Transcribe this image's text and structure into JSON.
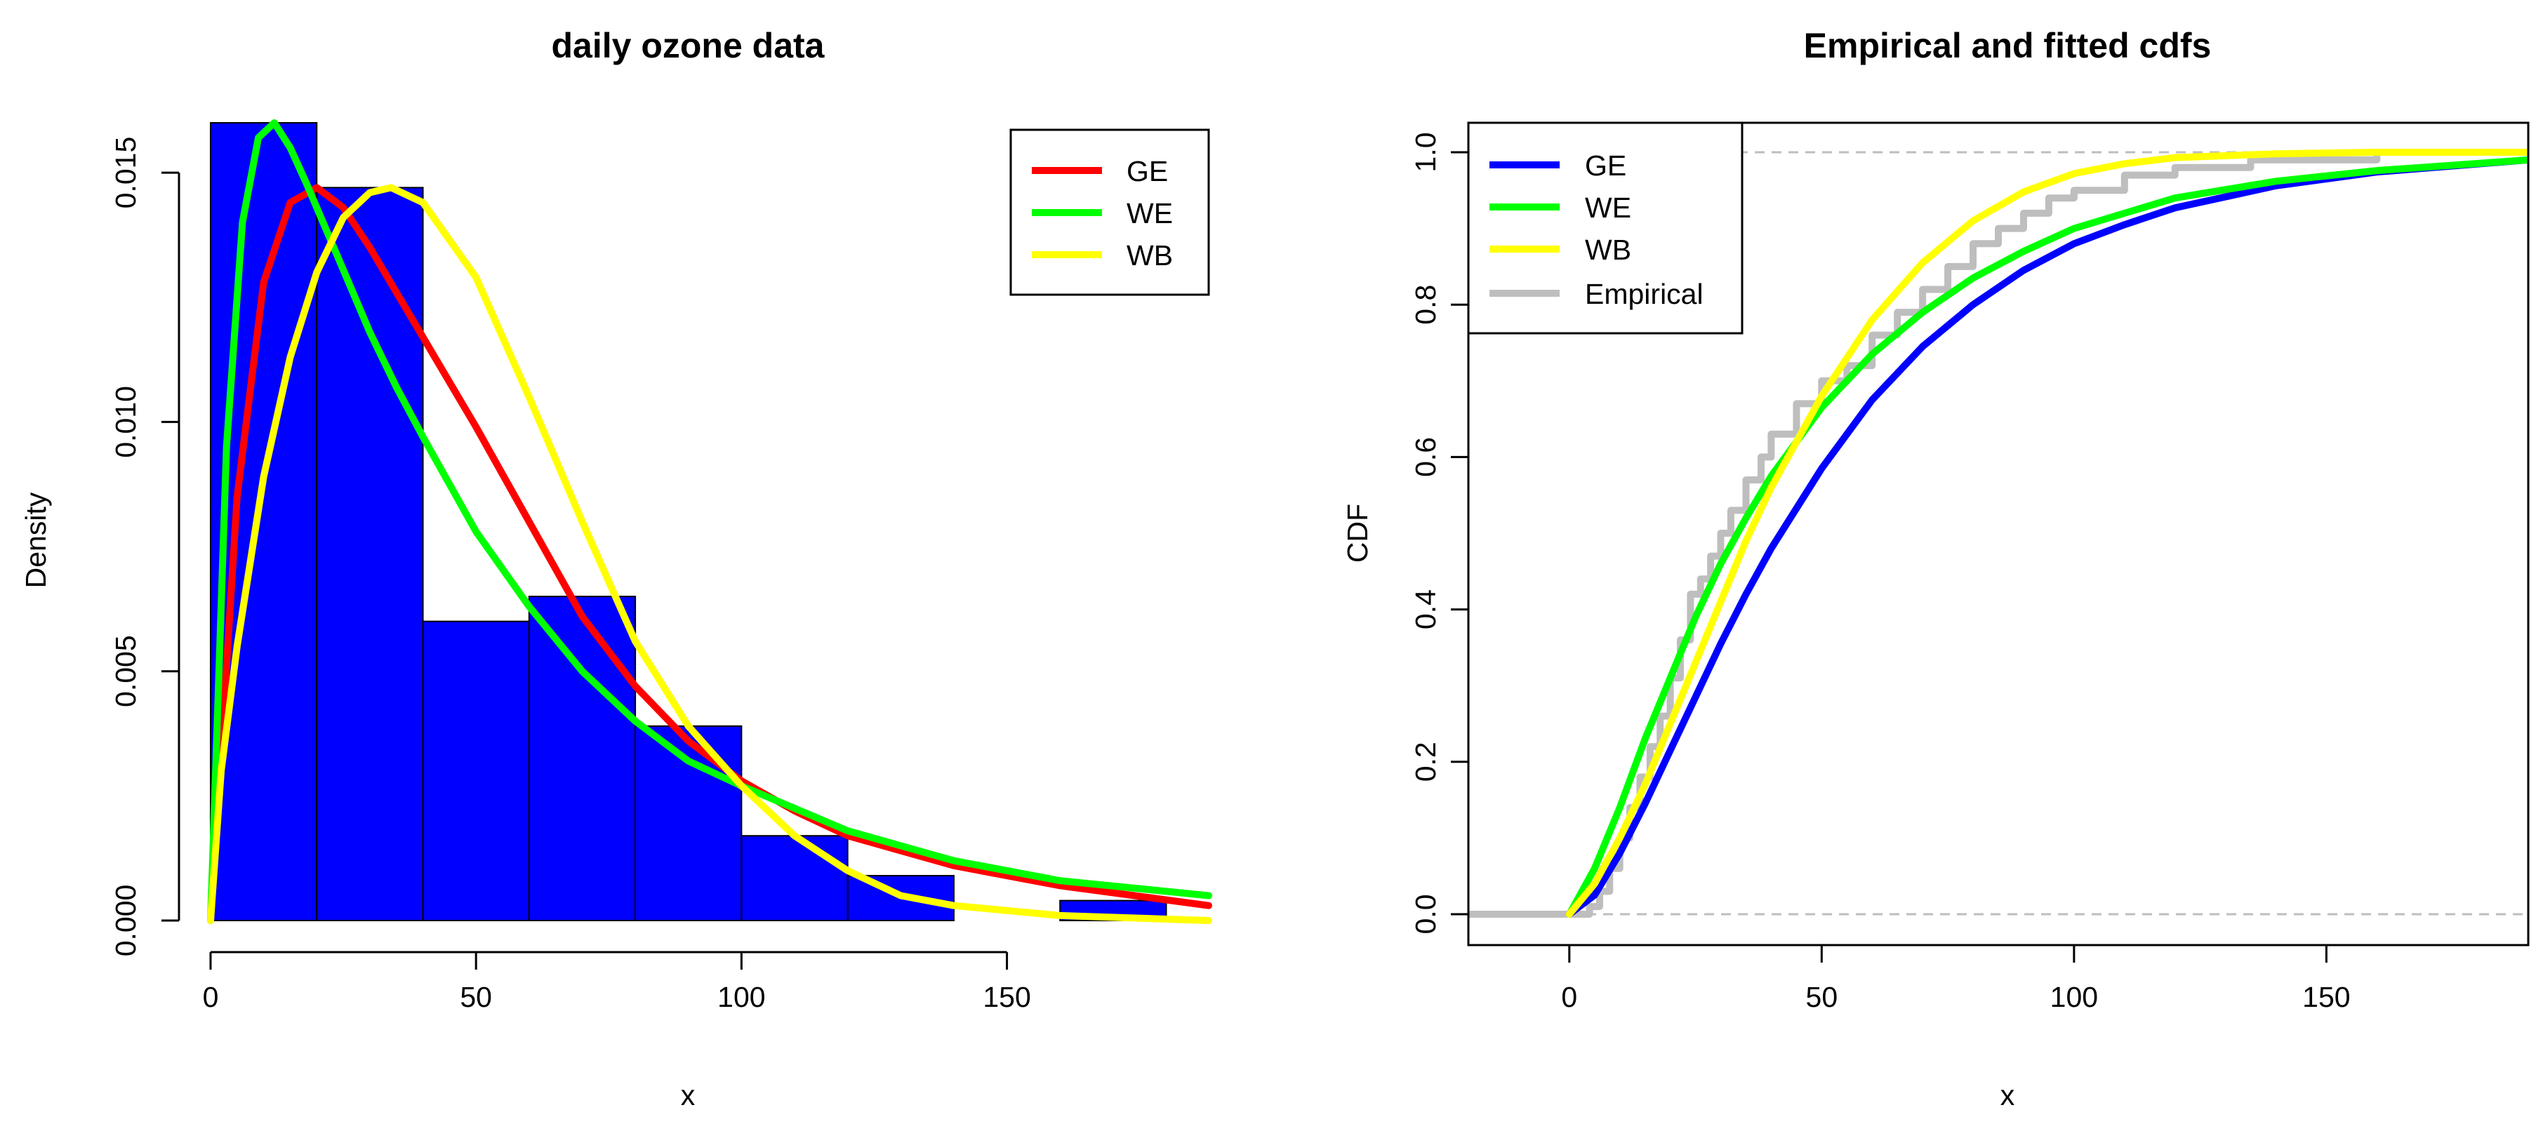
{
  "chart_data": [
    {
      "type": "histogram+line",
      "title": "daily ozone data",
      "xlabel": "x",
      "ylabel": "Density",
      "xlim": [
        0,
        188
      ],
      "ylim": [
        0,
        0.016
      ],
      "xticks": [
        0,
        50,
        100,
        150
      ],
      "yticks": [
        0.0,
        0.005,
        0.01,
        0.015
      ],
      "xtick_labels": [
        "0",
        "50",
        "100",
        "150"
      ],
      "ytick_labels": [
        "0.000",
        "0.005",
        "0.010",
        "0.015"
      ],
      "bar_color": "#0000ff",
      "bins": [
        {
          "x0": 0,
          "x1": 20,
          "density": 0.016
        },
        {
          "x0": 20,
          "x1": 40,
          "density": 0.0147
        },
        {
          "x0": 40,
          "x1": 60,
          "density": 0.006
        },
        {
          "x0": 60,
          "x1": 80,
          "density": 0.0065
        },
        {
          "x0": 80,
          "x1": 100,
          "density": 0.0039
        },
        {
          "x0": 100,
          "x1": 120,
          "density": 0.0017
        },
        {
          "x0": 120,
          "x1": 140,
          "density": 0.0009
        },
        {
          "x0": 140,
          "x1": 160,
          "density": 0.0
        },
        {
          "x0": 160,
          "x1": 180,
          "density": 0.0004
        }
      ],
      "series": [
        {
          "name": "GE",
          "color": "#ff0000",
          "x": [
            0,
            5,
            10,
            15,
            20,
            25,
            30,
            35,
            40,
            50,
            60,
            70,
            80,
            90,
            100,
            110,
            120,
            140,
            160,
            188
          ],
          "y": [
            0.0,
            0.0085,
            0.0128,
            0.0144,
            0.0147,
            0.0143,
            0.0135,
            0.0126,
            0.0117,
            0.0099,
            0.008,
            0.0061,
            0.0047,
            0.0036,
            0.0028,
            0.0022,
            0.0017,
            0.0011,
            0.0007,
            0.0003
          ]
        },
        {
          "name": "WE",
          "color": "#00ff00",
          "x": [
            0,
            3,
            6,
            9,
            12,
            15,
            18,
            22,
            26,
            30,
            35,
            40,
            50,
            60,
            70,
            80,
            90,
            100,
            120,
            140,
            160,
            188
          ],
          "y": [
            0.0,
            0.0095,
            0.014,
            0.0157,
            0.016,
            0.0155,
            0.0148,
            0.0138,
            0.0128,
            0.0118,
            0.0107,
            0.0097,
            0.0078,
            0.0063,
            0.005,
            0.004,
            0.0032,
            0.0027,
            0.0018,
            0.0012,
            0.0008,
            0.0005
          ]
        },
        {
          "name": "WB",
          "color": "#ffff00",
          "x": [
            0,
            2,
            5,
            10,
            15,
            20,
            25,
            30,
            34,
            40,
            50,
            60,
            70,
            80,
            90,
            100,
            110,
            120,
            130,
            140,
            160,
            188
          ],
          "y": [
            0.0,
            0.003,
            0.0055,
            0.0089,
            0.0113,
            0.013,
            0.0141,
            0.0146,
            0.0147,
            0.0144,
            0.0129,
            0.0105,
            0.008,
            0.0056,
            0.0039,
            0.0027,
            0.0017,
            0.001,
            0.0005,
            0.0003,
            0.0001,
            0.0
          ]
        }
      ],
      "legend": [
        "GE",
        "WE",
        "WB"
      ],
      "legend_position": "top-right"
    },
    {
      "type": "line",
      "title": "Empirical and fitted cdfs",
      "xlabel": "x",
      "ylabel": "CDF",
      "xlim": [
        -20,
        190
      ],
      "ylim": [
        0,
        1
      ],
      "xticks": [
        0,
        50,
        100,
        150
      ],
      "yticks": [
        0.0,
        0.2,
        0.4,
        0.6,
        0.8,
        1.0
      ],
      "xtick_labels": [
        "0",
        "50",
        "100",
        "150"
      ],
      "ytick_labels": [
        "0.0",
        "0.2",
        "0.4",
        "0.6",
        "0.8",
        "1.0"
      ],
      "reference_lines": [
        0,
        1
      ],
      "series": [
        {
          "name": "Empirical",
          "color": "#bebebe",
          "x": [
            -20,
            0,
            4,
            6,
            8,
            10,
            12,
            14,
            16,
            18,
            20,
            22,
            24,
            26,
            28,
            30,
            32,
            35,
            38,
            40,
            45,
            50,
            55,
            60,
            65,
            70,
            75,
            80,
            85,
            90,
            95,
            100,
            110,
            120,
            135,
            160,
            190
          ],
          "y": [
            0.0,
            0.0,
            0.01,
            0.03,
            0.06,
            0.1,
            0.14,
            0.18,
            0.22,
            0.26,
            0.31,
            0.36,
            0.42,
            0.44,
            0.47,
            0.5,
            0.53,
            0.57,
            0.6,
            0.63,
            0.67,
            0.7,
            0.72,
            0.76,
            0.79,
            0.82,
            0.85,
            0.88,
            0.9,
            0.92,
            0.94,
            0.95,
            0.97,
            0.98,
            0.99,
            1.0,
            1.0
          ]
        },
        {
          "name": "GE",
          "color": "#0000ff",
          "x": [
            0,
            5,
            10,
            15,
            20,
            25,
            30,
            35,
            40,
            50,
            60,
            70,
            80,
            90,
            100,
            110,
            120,
            140,
            160,
            190
          ],
          "y": [
            0.0,
            0.025,
            0.08,
            0.145,
            0.215,
            0.285,
            0.355,
            0.42,
            0.48,
            0.585,
            0.675,
            0.745,
            0.8,
            0.845,
            0.88,
            0.905,
            0.927,
            0.956,
            0.974,
            0.99
          ]
        },
        {
          "name": "WE",
          "color": "#00ff00",
          "x": [
            0,
            5,
            10,
            15,
            20,
            25,
            30,
            35,
            40,
            50,
            60,
            70,
            80,
            90,
            100,
            110,
            120,
            140,
            160,
            190
          ],
          "y": [
            0.0,
            0.06,
            0.14,
            0.23,
            0.31,
            0.39,
            0.46,
            0.52,
            0.575,
            0.665,
            0.735,
            0.79,
            0.835,
            0.87,
            0.9,
            0.92,
            0.94,
            0.962,
            0.976,
            0.99
          ]
        },
        {
          "name": "WB",
          "color": "#ffff00",
          "x": [
            0,
            5,
            10,
            15,
            20,
            25,
            30,
            35,
            40,
            50,
            60,
            70,
            80,
            90,
            100,
            110,
            120,
            140,
            160,
            190
          ],
          "y": [
            0.0,
            0.04,
            0.1,
            0.17,
            0.25,
            0.33,
            0.41,
            0.49,
            0.56,
            0.68,
            0.78,
            0.855,
            0.91,
            0.948,
            0.972,
            0.985,
            0.993,
            0.998,
            1.0,
            1.0
          ]
        }
      ],
      "legend": [
        "GE",
        "WE",
        "WB",
        "Empirical"
      ],
      "legend_position": "top-left"
    }
  ]
}
